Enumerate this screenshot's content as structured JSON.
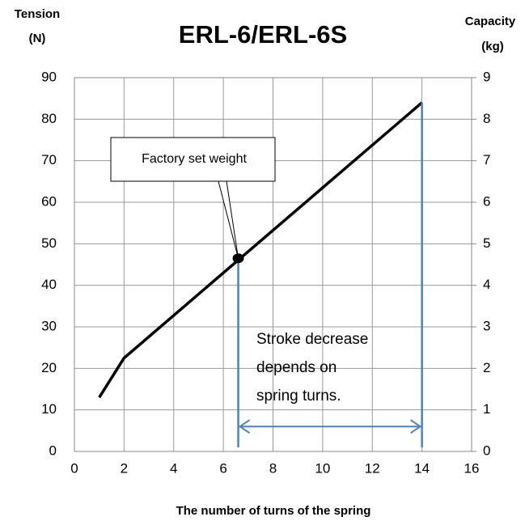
{
  "chart_data": {
    "type": "line",
    "title": "ERL-6/ERL-6S",
    "ylabel": [
      "Tension",
      "(N)"
    ],
    "y2label": [
      "Capacity",
      "(kg)"
    ],
    "xlabel": "The number of turns of the spring",
    "series": [
      {
        "color": "#000000",
        "x": [
          1,
          2,
          14
        ],
        "values": [
          13,
          22.5,
          84
        ]
      }
    ],
    "xlim": [
      0,
      16
    ],
    "xticks": [
      0,
      2,
      4,
      6,
      8,
      10,
      12,
      14,
      16
    ],
    "ylim": [
      0,
      90
    ],
    "yticks": [
      0,
      10,
      20,
      30,
      40,
      50,
      60,
      70,
      80,
      90
    ],
    "y2lim": [
      0,
      9
    ],
    "y2ticks": [
      0,
      1,
      2,
      3,
      4,
      5,
      6,
      7,
      8,
      9
    ],
    "grid": true,
    "annotations": [
      {
        "text": "Factory set weight",
        "x": 6.6,
        "y": 46.5
      },
      {
        "lines": [
          "Stroke decrease",
          "depends on",
          "spring turns."
        ],
        "x": [
          6.6,
          14
        ],
        "y": 6,
        "color": "#4f81bd"
      }
    ]
  }
}
